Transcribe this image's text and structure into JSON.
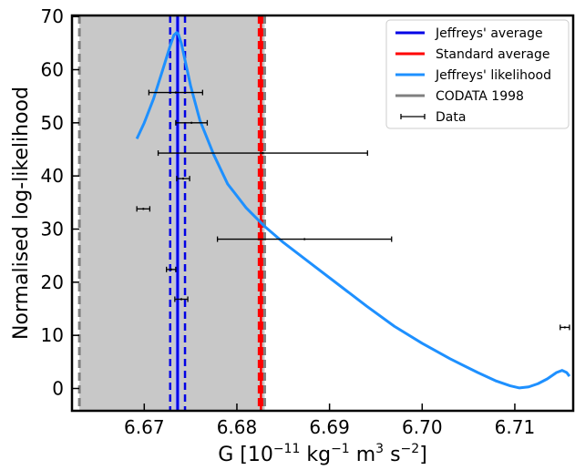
{
  "chart_data": {
    "type": "line",
    "xlabel": {
      "base": "G [10",
      "exp1": "−11",
      "mid1": " kg",
      "exp2": "−1",
      "mid2": " m",
      "exp3": "3",
      "mid3": " s",
      "exp4": "−2",
      "end": "]"
    },
    "ylabel": "Normalised log-likelihood",
    "xlim": [
      6.6622,
      6.7163
    ],
    "ylim": [
      -4.2,
      70.2
    ],
    "x_ticks": [
      6.67,
      6.68,
      6.69,
      6.7,
      6.71
    ],
    "x_tick_labels": [
      "6.67",
      "6.68",
      "6.69",
      "6.70",
      "6.71"
    ],
    "y_ticks": [
      0,
      10,
      20,
      30,
      40,
      50,
      60,
      70
    ],
    "y_tick_labels": [
      "0",
      "10",
      "20",
      "30",
      "40",
      "50",
      "60",
      "70"
    ],
    "colors": {
      "jeffreys_average": "#0000e6",
      "standard_average": "#ff0000",
      "jeffreys_likelihood": "#1e90ff",
      "codata": "#808080",
      "codata_band": "#c8c8c8",
      "data": "#000000"
    },
    "codata_1998": {
      "bounds": [
        6.663,
        6.683
      ]
    },
    "jeffreys_average": {
      "value": 6.6736,
      "bounds": [
        6.6728,
        6.6744
      ],
      "band": [
        6.6733,
        6.6739
      ]
    },
    "standard_average": {
      "value": 6.6826,
      "bounds": [
        6.6824,
        6.6827
      ]
    },
    "jeffreys_likelihood": {
      "x": [
        6.6692,
        6.67,
        6.671,
        6.672,
        6.6728,
        6.6732,
        6.6735,
        6.6737,
        6.674,
        6.6745,
        6.675,
        6.676,
        6.6775,
        6.679,
        6.681,
        6.683,
        6.685,
        6.688,
        6.691,
        6.694,
        6.697,
        6.7,
        6.703,
        6.706,
        6.708,
        6.7095,
        6.7105,
        6.7115,
        6.7125,
        6.7135,
        6.7145,
        6.7151,
        6.7156,
        6.7159
      ],
      "y": [
        47,
        50,
        54.5,
        60,
        64.5,
        66.5,
        67,
        66.6,
        65,
        61,
        57,
        50.5,
        44,
        38.5,
        34,
        30.5,
        27.5,
        23.5,
        19.5,
        15.5,
        11.7,
        8.5,
        5.6,
        3.0,
        1.4,
        0.5,
        0.1,
        0.3,
        0.9,
        1.8,
        3.0,
        3.4,
        3.0,
        2.3
      ]
    },
    "data_points": [
      {
        "x": 6.6734,
        "xerr": 0.0029,
        "y": 55.7
      },
      {
        "x": 6.6751,
        "xerr": 0.0017,
        "y": 50.0
      },
      {
        "x": 6.6828,
        "xerr": 0.0113,
        "y": 44.3
      },
      {
        "x": 6.6742,
        "xerr": 0.0007,
        "y": 39.5
      },
      {
        "x": 6.6699,
        "xerr": 0.0007,
        "y": 33.8
      },
      {
        "x": 6.6873,
        "xerr": 0.0094,
        "y": 28.1
      },
      {
        "x": 6.6729,
        "xerr": 0.0005,
        "y": 22.4
      },
      {
        "x": 6.674,
        "xerr": 0.0007,
        "y": 16.8
      },
      {
        "x": 6.7154,
        "xerr": 0.0005,
        "y": 11.5
      }
    ],
    "legend": {
      "placement": "top-right",
      "entries": [
        {
          "key": "jeffreys_average",
          "label": "Jeffreys' average",
          "kind": "line"
        },
        {
          "key": "standard_average",
          "label": "Standard average",
          "kind": "line"
        },
        {
          "key": "jeffreys_likelihood",
          "label": "Jeffreys' likelihood",
          "kind": "line"
        },
        {
          "key": "codata",
          "label": "CODATA 1998",
          "kind": "line"
        },
        {
          "key": "data",
          "label": "Data",
          "kind": "errorbar"
        }
      ]
    },
    "grid": false
  }
}
